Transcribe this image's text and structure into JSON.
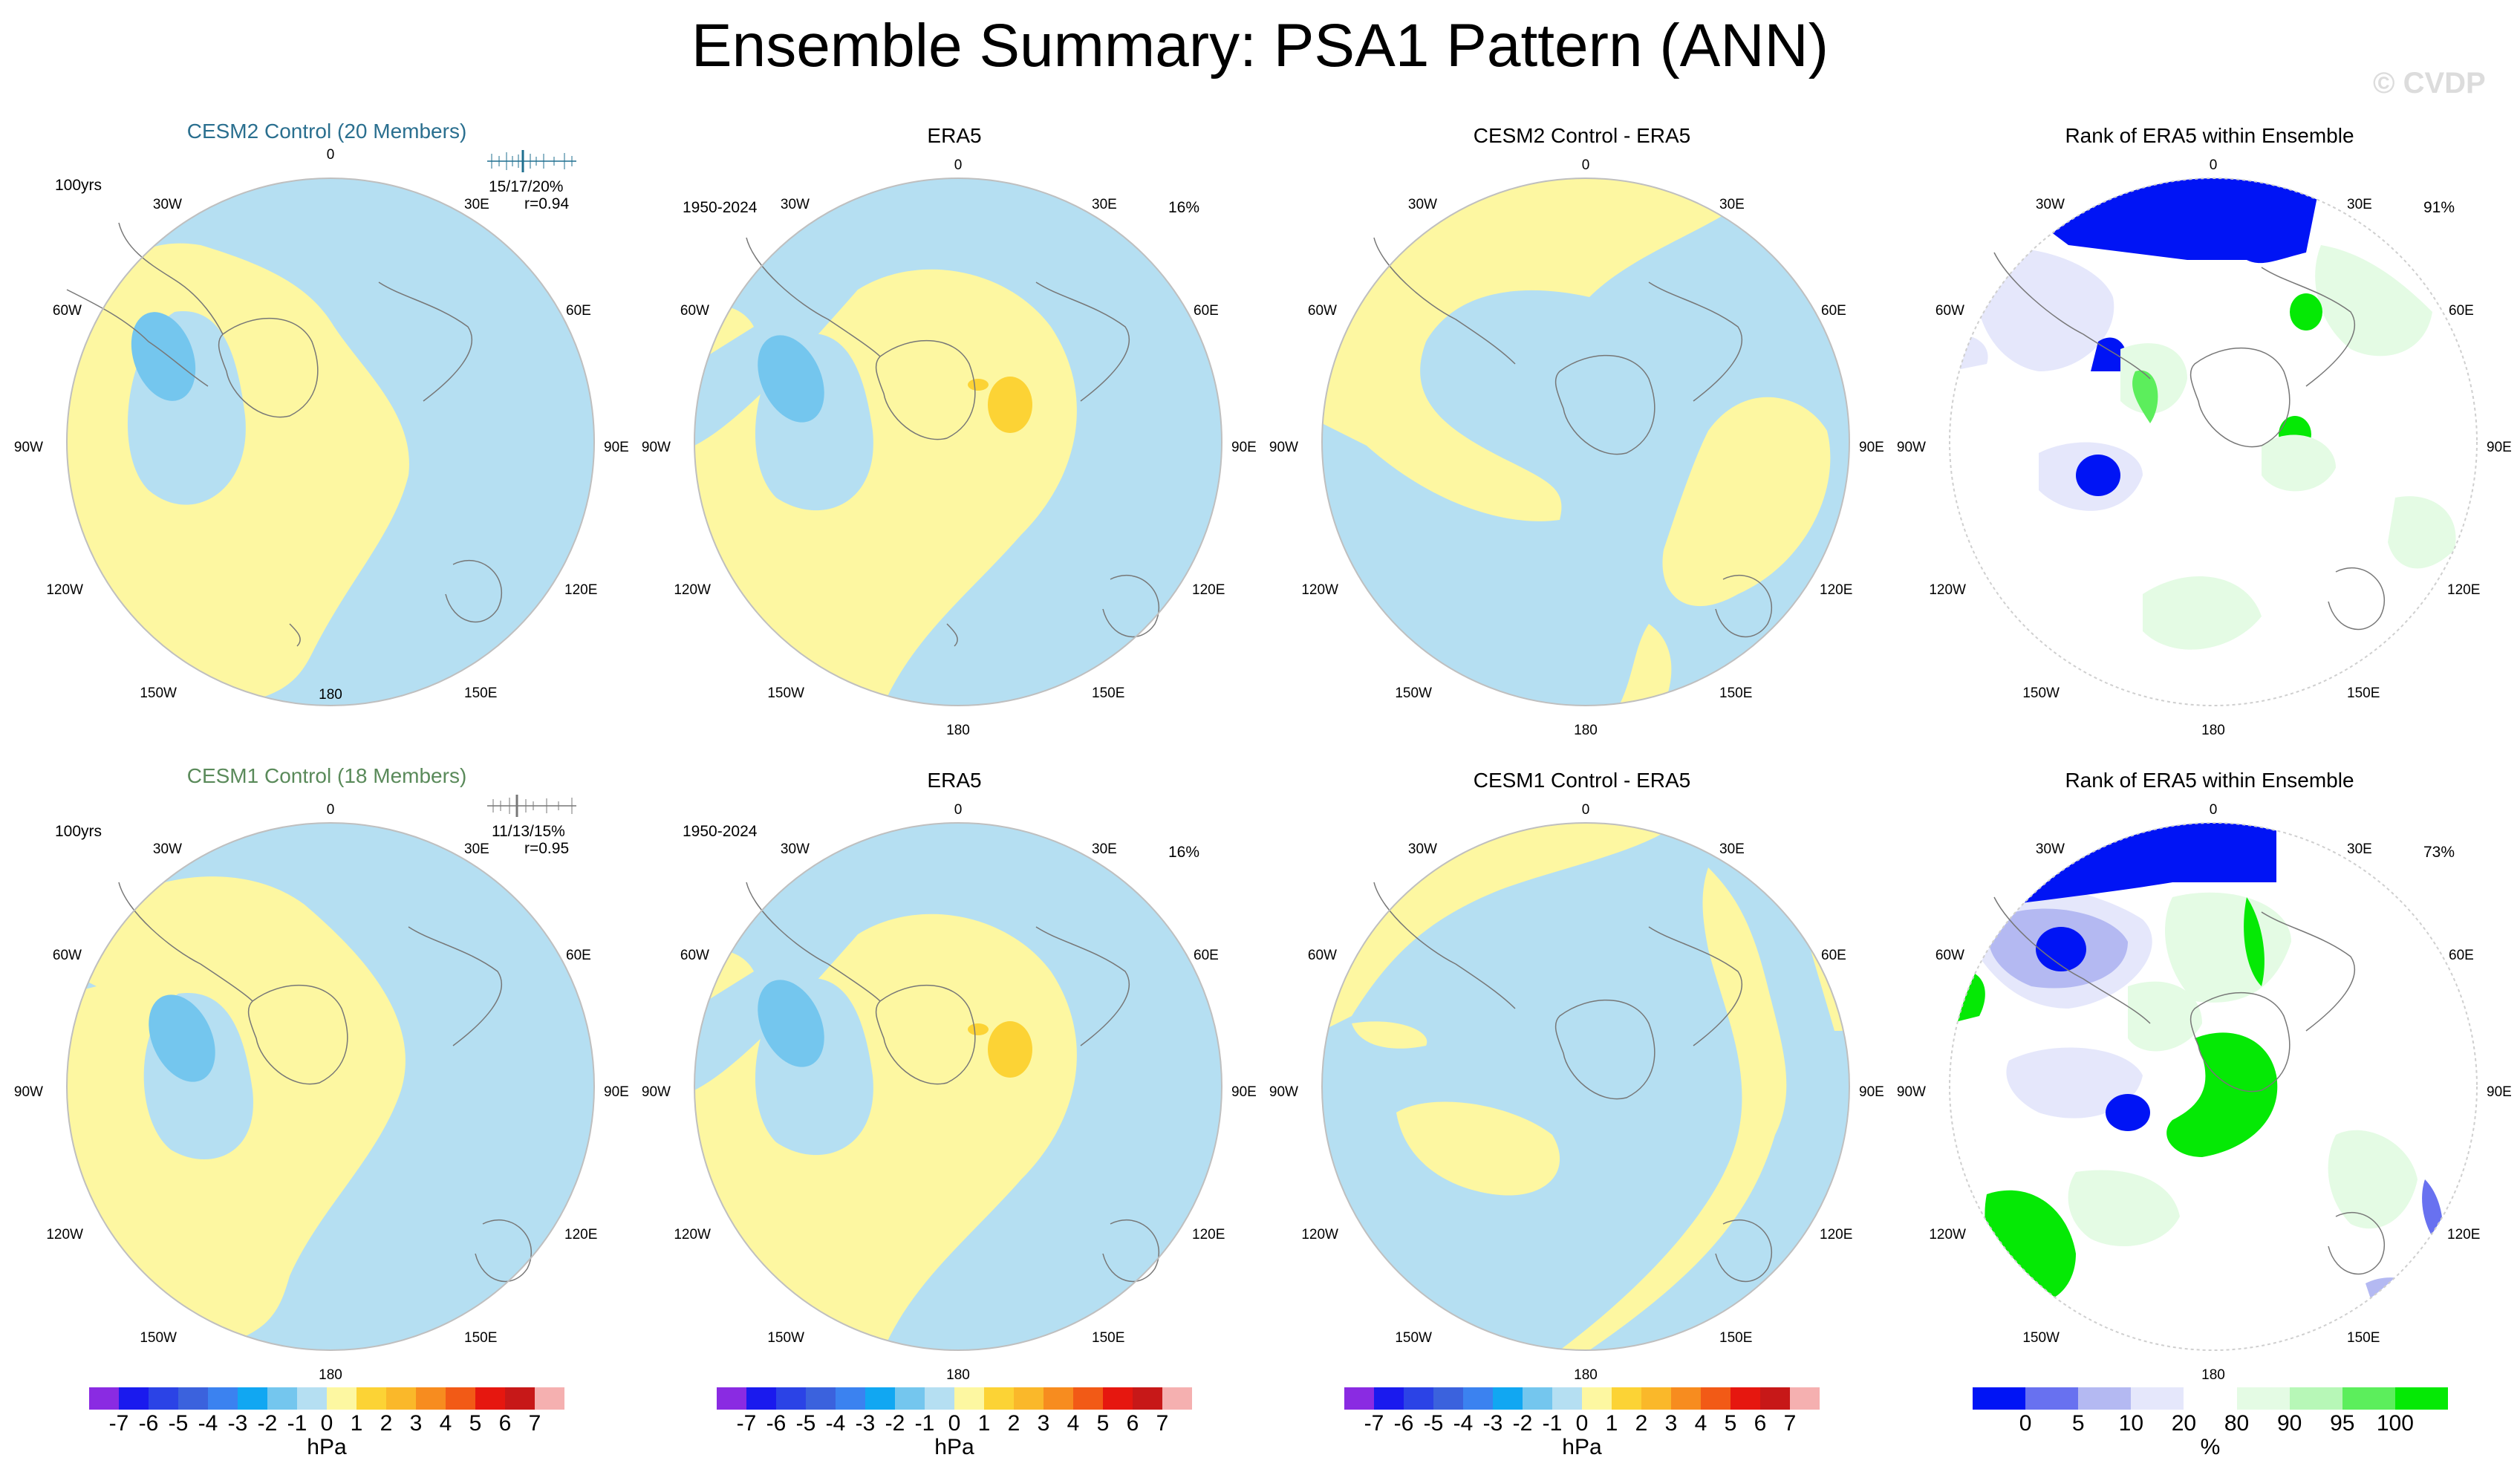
{
  "title": "Ensemble Summary: PSA1 Pattern (ANN)",
  "watermark": "© CVDP",
  "colors": {
    "neg1": "#b5dff2",
    "neg3": "#74c6ee",
    "pos1": "#fdf7a1",
    "pos3": "#fcd335",
    "rank_0": "#0014f5",
    "rank_5": "#6871f0",
    "rank_10": "#b4b9f2",
    "rank_20": "#e5e7fb",
    "rank_80": "#e4fbe4",
    "rank_90": "#b7f7b7",
    "rank_95": "#5cee5c",
    "rank_100": "#05e905"
  },
  "lon_labels": {
    "top": "0",
    "bottom": "180",
    "l30": "30W",
    "l60": "60W",
    "l90": "90W",
    "l120": "120W",
    "l150": "150W",
    "r30": "30E",
    "r60": "60E",
    "r90": "90E",
    "r120": "120E",
    "r150": "150E"
  },
  "panels": {
    "p11": {
      "title": "CESM2 Control (20 Members)",
      "left_note": "100yrs",
      "right_note1": "15/17/20%",
      "right_note2": "r=0.94"
    },
    "p12": {
      "title": "ERA5",
      "left_note": "1950-2024",
      "right_note": "16%"
    },
    "p13": {
      "title": "CESM2 Control - ERA5"
    },
    "p14": {
      "title": "Rank of ERA5 within Ensemble",
      "right_note": "91%"
    },
    "p21": {
      "title": "CESM1 Control (18 Members)",
      "left_note": "100yrs",
      "right_note1": "11/13/15%",
      "right_note2": "r=0.95"
    },
    "p22": {
      "title": "ERA5",
      "left_note": "1950-2024",
      "right_note": "16%"
    },
    "p23": {
      "title": "CESM1 Control - ERA5"
    },
    "p24": {
      "title": "Rank of ERA5 within Ensemble",
      "right_note": "73%"
    }
  },
  "chart_data": [
    {
      "type": "heatmap",
      "name": "sea-level-pressure-colorbar",
      "unit": "hPa",
      "ticks": [
        "-7",
        "-6",
        "-5",
        "-4",
        "-3",
        "-2",
        "-1",
        "0",
        "1",
        "2",
        "3",
        "4",
        "5",
        "6",
        "7"
      ],
      "colors": [
        "#8a2be2",
        "#1a1aee",
        "#2b43e6",
        "#3b62dd",
        "#3b82f0",
        "#11a7f2",
        "#74c6ee",
        "#b5dff2",
        "#fdf7a1",
        "#fcd335",
        "#fab82a",
        "#f78c1f",
        "#f25a16",
        "#e6170f",
        "#c71818",
        "#f5b0b0"
      ]
    },
    {
      "type": "heatmap",
      "name": "rank-colorbar",
      "unit": "%",
      "ticks": [
        "0",
        "5",
        "10",
        "20",
        "80",
        "90",
        "95",
        "100"
      ],
      "colors": [
        "#0014f5",
        "#6871f0",
        "#b4b9f2",
        "#e5e7fb",
        "#ffffff",
        "#e4fbe4",
        "#b7f7b7",
        "#5cee5c",
        "#05e905"
      ]
    }
  ]
}
